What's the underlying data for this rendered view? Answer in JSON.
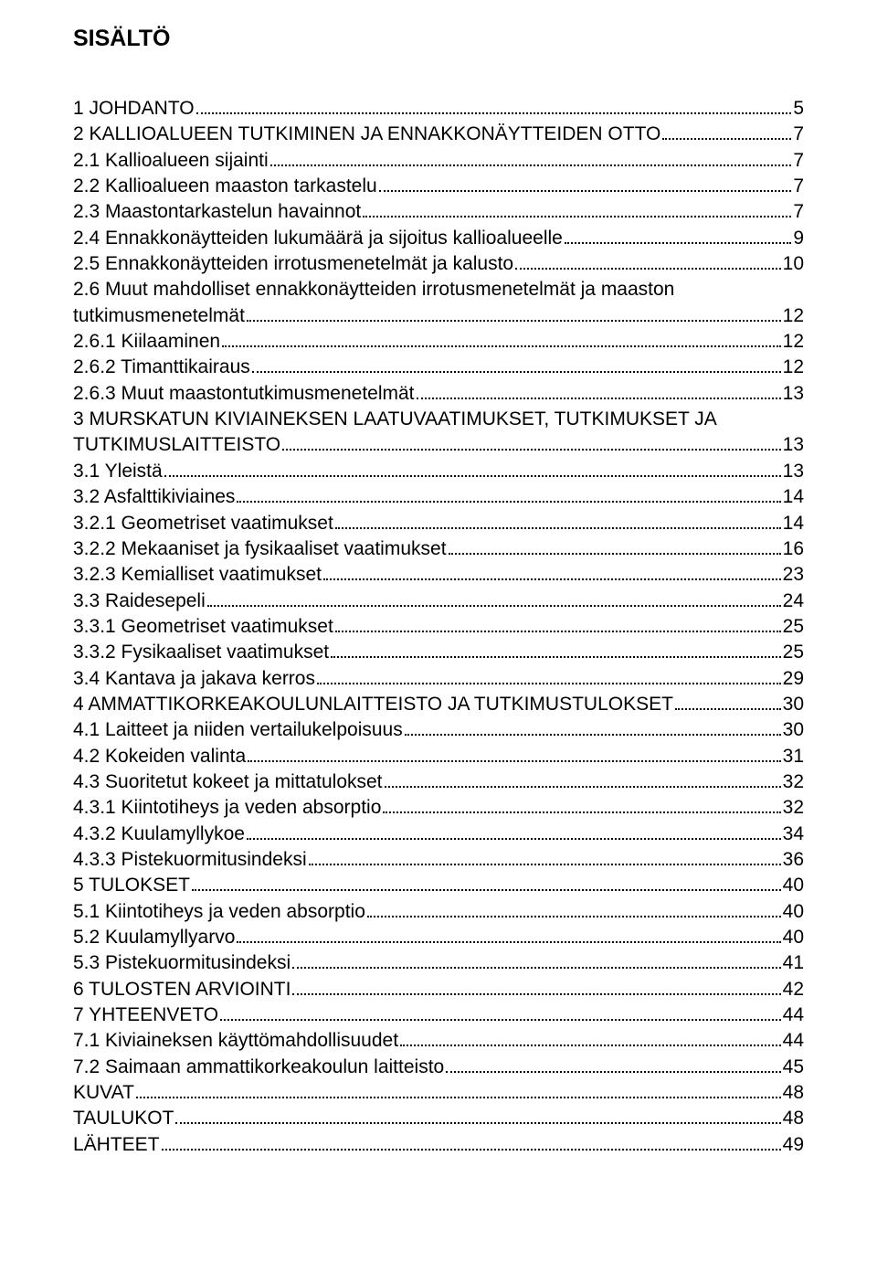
{
  "heading": "SISÄLTÖ",
  "font": {
    "family": "Arial",
    "heading_size_pt": 19,
    "body_size_pt": 16,
    "color": "#000000",
    "background": "#ffffff",
    "dot_color": "#000000"
  },
  "toc": [
    {
      "title": "1 JOHDANTO",
      "page": "5"
    },
    {
      "title": "2 KALLIOALUEEN TUTKIMINEN JA ENNAKKONÄYTTEIDEN OTTO",
      "page": "7"
    },
    {
      "title": "2.1 Kallioalueen sijainti",
      "page": "7"
    },
    {
      "title": "2.2 Kallioalueen maaston tarkastelu",
      "page": "7"
    },
    {
      "title": "2.3 Maastontarkastelun havainnot",
      "page": "7"
    },
    {
      "title": "2.4 Ennakkonäytteiden lukumäärä ja sijoitus kallioalueelle",
      "page": "9"
    },
    {
      "title": "2.5 Ennakkonäytteiden irrotusmenetelmät ja kalusto",
      "page": "10"
    },
    {
      "title": "2.6 Muut mahdolliset ennakkonäytteiden irrotusmenetelmät ja maaston",
      "nowrap_break": true
    },
    {
      "title": "tutkimusmenetelmät",
      "page": "12"
    },
    {
      "title": "2.6.1 Kiilaaminen",
      "page": "12"
    },
    {
      "title": "2.6.2 Timanttikairaus",
      "page": "12"
    },
    {
      "title": "2.6.3 Muut maastontutkimusmenetelmät",
      "page": "13"
    },
    {
      "title": "3 MURSKATUN KIVIAINEKSEN LAATUVAATIMUKSET, TUTKIMUKSET JA",
      "nowrap_break": true
    },
    {
      "title": "TUTKIMUSLAITTEISTO",
      "page": "13"
    },
    {
      "title": "3.1 Yleistä",
      "page": "13"
    },
    {
      "title": "3.2 Asfalttikiviaines",
      "page": "14"
    },
    {
      "title": "3.2.1 Geometriset vaatimukset",
      "page": "14"
    },
    {
      "title": "3.2.2 Mekaaniset ja fysikaaliset vaatimukset",
      "page": "16"
    },
    {
      "title": "3.2.3 Kemialliset vaatimukset",
      "page": "23"
    },
    {
      "title": "3.3 Raidesepeli",
      "page": "24"
    },
    {
      "title": "3.3.1 Geometriset vaatimukset",
      "page": "25"
    },
    {
      "title": "3.3.2 Fysikaaliset vaatimukset",
      "page": "25"
    },
    {
      "title": "3.4 Kantava ja jakava kerros",
      "page": "29"
    },
    {
      "title": "4 AMMATTIKORKEAKOULUNLAITTEISTO JA TUTKIMUSTULOKSET",
      "page": "30"
    },
    {
      "title": "4.1 Laitteet ja niiden vertailukelpoisuus",
      "page": "30"
    },
    {
      "title": "4.2 Kokeiden valinta",
      "page": "31"
    },
    {
      "title": "4.3 Suoritetut kokeet ja mittatulokset",
      "page": "32"
    },
    {
      "title": "4.3.1 Kiintotiheys ja veden absorptio",
      "page": "32"
    },
    {
      "title": "4.3.2 Kuulamyllykoe",
      "page": "34"
    },
    {
      "title": "4.3.3 Pistekuormitusindeksi",
      "page": "36"
    },
    {
      "title": "5 TULOKSET",
      "page": "40"
    },
    {
      "title": "5.1 Kiintotiheys ja veden absorptio",
      "page": "40"
    },
    {
      "title": "5.2 Kuulamyllyarvo",
      "page": "40"
    },
    {
      "title": "5.3 Pistekuormitusindeksi",
      "page": "41"
    },
    {
      "title": "6 TULOSTEN ARVIOINTI",
      "page": "42"
    },
    {
      "title": "7 YHTEENVETO",
      "page": "44"
    },
    {
      "title": "7.1 Kiviaineksen käyttömahdollisuudet",
      "page": "44"
    },
    {
      "title": "7.2 Saimaan ammattikorkeakoulun laitteisto",
      "page": "45"
    },
    {
      "title": "KUVAT",
      "page": "48"
    },
    {
      "title": "TAULUKOT",
      "page": "48"
    },
    {
      "title": "LÄHTEET",
      "page": "49"
    }
  ]
}
